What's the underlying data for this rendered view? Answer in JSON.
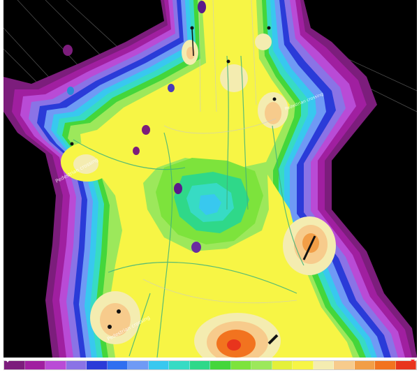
{
  "view": {
    "title": "",
    "background": "#000000"
  },
  "annotations": [
    "Pedestrian crossing",
    "Pedestrian crossing",
    "Pedestrian crossing"
  ],
  "color_scale": {
    "low_marker_color": "#ffffff",
    "high_marker_color": "#ff2b2b",
    "steps": [
      {
        "color": "#7c1d7c",
        "label": ""
      },
      {
        "color": "#a01fa0",
        "label": ""
      },
      {
        "color": "#b94bd6",
        "label": ""
      },
      {
        "color": "#8a73e6",
        "label": ""
      },
      {
        "color": "#2a3bd8",
        "label": ""
      },
      {
        "color": "#2f6ff0",
        "label": ""
      },
      {
        "color": "#6f9af5",
        "label": ""
      },
      {
        "color": "#38c8ef",
        "label": ""
      },
      {
        "color": "#37dbc4",
        "label": ""
      },
      {
        "color": "#2fd889",
        "label": ""
      },
      {
        "color": "#44d63b",
        "label": ""
      },
      {
        "color": "#7de33c",
        "label": ""
      },
      {
        "color": "#9ce85b",
        "label": ""
      },
      {
        "color": "#e4f03a",
        "label": ""
      },
      {
        "color": "#f7f545",
        "label": ""
      },
      {
        "color": "#f4ecb0",
        "label": ""
      },
      {
        "color": "#f7cb8c",
        "label": ""
      },
      {
        "color": "#f29e47",
        "label": ""
      },
      {
        "color": "#f2731f",
        "label": ""
      },
      {
        "color": "#e8341d",
        "label": ""
      }
    ]
  }
}
